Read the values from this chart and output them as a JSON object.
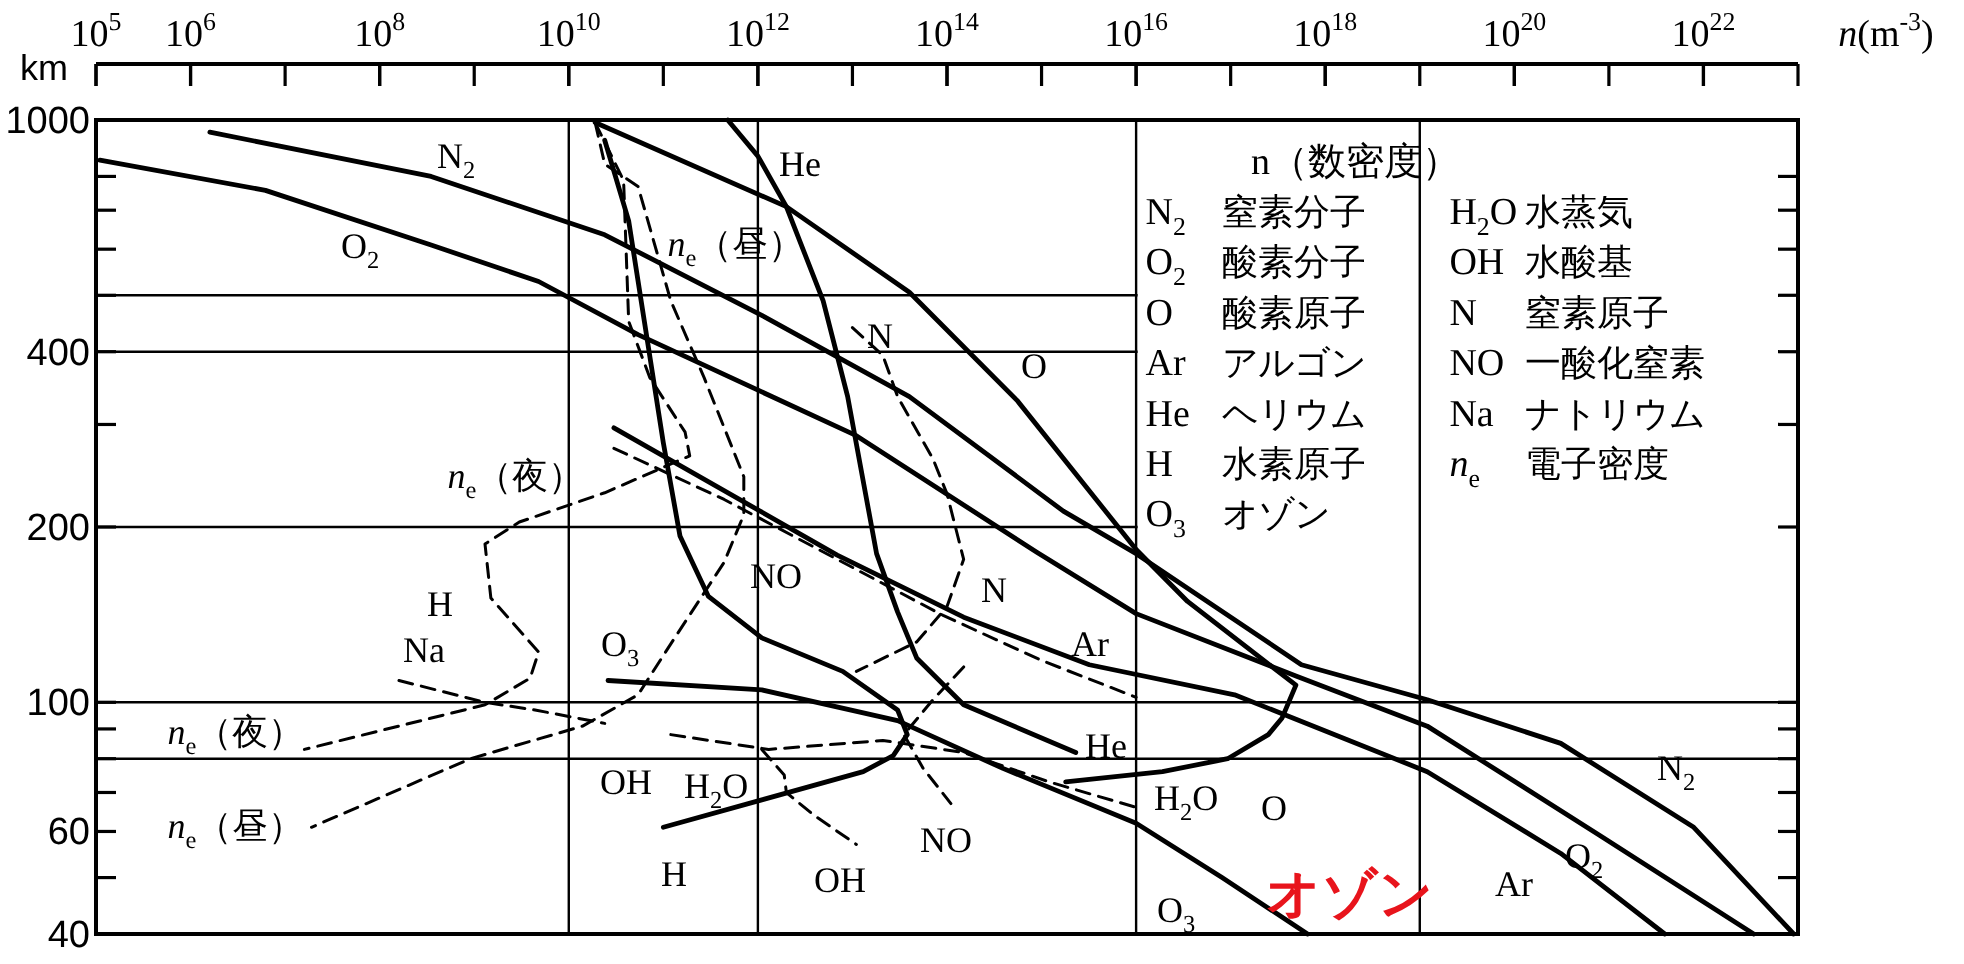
{
  "chart_data": {
    "type": "line",
    "xlabel": "*n*(m$^{-3}$)",
    "ylabel": "km",
    "log": "xy",
    "xlim": [
      100000.0,
      1e+23
    ],
    "ylim": [
      40,
      1000
    ],
    "xticks": [
      {
        "value": 100000.0,
        "label": "10$^{5}$"
      },
      {
        "value": 1000000.0,
        "label": "10$^{6}$"
      },
      {
        "value": 100000000.0,
        "label": "10$^{8}$"
      },
      {
        "value": 10000000000.0,
        "label": "10$^{10}$"
      },
      {
        "value": 1000000000000.0,
        "label": "10$^{12}$"
      },
      {
        "value": 100000000000000.0,
        "label": "10$^{14}$"
      },
      {
        "value": 1e+16,
        "label": "10$^{16}$"
      },
      {
        "value": 1e+18,
        "label": "10$^{18}$"
      },
      {
        "value": 1e+20,
        "label": "10$^{20}$"
      },
      {
        "value": 1e+22,
        "label": "10$^{22}$"
      }
    ],
    "yticks": [
      40,
      {
        "value": 50,
        "label": null
      },
      60,
      {
        "value": 70,
        "label": null
      },
      {
        "value": 80,
        "label": null
      },
      {
        "value": 90,
        "label": null
      },
      100,
      200,
      {
        "value": 300,
        "label": null
      },
      400,
      {
        "value": 500,
        "label": null
      },
      {
        "value": 600,
        "label": null
      },
      {
        "value": 700,
        "label": null
      },
      {
        "value": 800,
        "label": null
      },
      1000
    ],
    "ref_lines": [
      {
        "axis": "x",
        "value": 10000000000.0
      },
      {
        "axis": "x",
        "value": 1000000000000.0
      },
      {
        "axis": "x",
        "value": 1e+16
      },
      {
        "axis": "x",
        "value": 1e+19
      },
      {
        "axis": "y",
        "value": 80
      },
      {
        "axis": "y",
        "value": 100
      },
      {
        "axis": "y",
        "value": 200
      },
      {
        "axis": "y",
        "value": 400
      },
      {
        "axis": "y",
        "value": 500
      }
    ],
    "series": [
      {
        "color": "#000000",
        "line_style": "solid",
        "x": [
          1600000.0,
          350000000.0,
          24000000000.0,
          1100000000000.0,
          40000000000000.0,
          1700000000000000.0,
          1e+16,
          5.6e+17,
          1.2e+19,
          3.1e+20,
          7.9e+21,
          9e+22
        ],
        "values": [
          953,
          800,
          635,
          462,
          335,
          213,
          180,
          116,
          101,
          85,
          61,
          40
        ]
      },
      {
        "color": "#000000",
        "line_style": "solid",
        "x": [
          110000.0,
          6200000.0,
          350000000.0,
          4800000000.0,
          54000000000.0,
          11000000000000.0,
          890000000000000.0,
          1e+16,
          4.9e+17,
          1.2e+19,
          8.1e+20,
          3.4e+22
        ],
        "values": [
          853,
          757,
          610,
          528,
          428,
          287,
          181,
          142,
          111,
          91,
          59,
          40
        ]
      },
      {
        "color": "#000000",
        "line_style": "solid",
        "x": [
          19000000000.0,
          2000000000000.0,
          40000000000000.0,
          550000000000000.0,
          1e+16,
          3.5e+16,
          4.9e+17,
          3.5e+17,
          2.5e+17,
          9.3e+16,
          1.9e+16,
          1800000000000000.0
        ],
        "values": [
          990,
          710,
          506,
          330,
          183,
          149,
          107,
          94,
          88,
          80,
          76,
          73
        ]
      },
      {
        "color": "#000000",
        "line_style": "solid",
        "x": [
          30000000000.0,
          6900000000000.0,
          150000000000000.0,
          3200000000000000.0,
          1.1e+17,
          1.2e+19,
          3.1e+20,
          3.9e+21
        ],
        "values": [
          296,
          179,
          140,
          116,
          103,
          76,
          55,
          40
        ]
      },
      {
        "color": "#000000",
        "line_style": "solid",
        "x": [
          480000000000.0,
          1000000000000.0,
          2000000000000.0,
          4900000000000.0,
          8900000000000.0,
          18000000000000.0,
          30000000000000.0,
          48000000000000.0,
          150000000000000.0,
          2300000000000000.0
        ],
        "values": [
          1000,
          867,
          710,
          489,
          335,
          180,
          143,
          119,
          99,
          82
        ]
      },
      {
        "color": "#000000",
        "line_style": "solid",
        "x": [
          24000000000.0,
          43000000000.0,
          63000000000.0,
          100000000000.0,
          150000000000.0,
          300000000000.0,
          1100000000000.0,
          7900000000000.0,
          30000000000000.0,
          38000000000000.0,
          27000000000000.0,
          13000000000000.0,
          1100000000000.0,
          100000000000.0
        ],
        "values": [
          923,
          671,
          451,
          279,
          193,
          152,
          129,
          113,
          97,
          88,
          81,
          76,
          68,
          61
        ]
      },
      {
        "color": "#000000",
        "line_style": "solid",
        "x": [
          26000000000.0,
          1100000000000.0,
          30000000000000.0,
          390000000000000.0,
          1e+16,
          8.1e+16,
          6.5e+17
        ],
        "values": [
          109,
          105,
          93,
          77,
          62,
          50,
          40
        ]
      },
      {
        "color": "#000000",
        "line_style": "dashed",
        "x": [
          10000000000000.0,
          21000000000000.0,
          30000000000000.0,
          71000000000000.0,
          100000000000000.0,
          150000000000000.0,
          100000000000000.0,
          48000000000000.0,
          11000000000000.0
        ],
        "values": [
          440,
          394,
          335,
          262,
          228,
          176,
          146,
          127,
          113
        ]
      },
      {
        "color": "#000000",
        "line_style": "dashed",
        "x": [
          30000000000.0,
          440000000000.0,
          6900000000000.0,
          91000000000000.0,
          1000000000000000.0,
          1e+16,
          null,
          150000000000000.0,
          71000000000000.0,
          35000000000000.0,
          56000000000000.0,
          110000000000000.0
        ],
        "values": [
          273,
          223,
          176,
          141,
          118,
          102,
          null,
          115,
          101,
          88,
          77,
          67
        ]
      },
      {
        "color": "#000000",
        "line_style": "dashed",
        "x": [
          19000000000.0,
          24000000000.0,
          54000000000.0,
          120000000000.0,
          270000000000.0,
          710000000000.0,
          710000000000.0,
          440000000000.0,
          120000000000.0,
          54000000000.0,
          14000000000.0,
          910000000.0,
          19000000.0
        ],
        "values": [
          990,
          840,
          769,
          489,
          361,
          244,
          210,
          174,
          126,
          103,
          91,
          80,
          61
        ]
      },
      {
        "color": "#000000",
        "line_style": "dashed",
        "x": [
          19000000000.0,
          38000000000.0,
          43000000000.0,
          72000000000.0,
          170000000000.0,
          190000000000.0,
          24000000000.0,
          3000000000.0,
          1300000000.0,
          1500000000.0,
          4800000000.0,
          3900000000.0,
          1300000000.0,
          16000000.0
        ],
        "values": [
          990,
          787,
          451,
          361,
          291,
          265,
          229,
          204,
          187,
          151,
          122,
          110,
          99,
          83
        ]
      },
      {
        "color": "#000000",
        "line_style": "dashed",
        "x": [
          160000000.0,
          1300000000.0,
          4400000000.0,
          24000000000.0
        ],
        "values": [
          109,
          100,
          97,
          92
        ]
      },
      {
        "color": "#000000",
        "line_style": "dashed",
        "x": [
          120000000000.0,
          1300000000000.0,
          21000000000000.0,
          150000000000000.0,
          1200000000000000.0,
          1e+16
        ],
        "values": [
          88,
          83,
          86,
          82,
          73,
          66
        ]
      },
      {
        "color": "#000000",
        "line_style": "dashed",
        "x": [
          1100000000000.0,
          1900000000000.0,
          2000000000000.0,
          3900000000000.0,
          11000000000000.0
        ],
        "values": [
          83,
          75,
          70,
          64,
          57
        ]
      }
    ],
    "annotations": [
      "N$_{2}$",
      "O$_{2}$",
      "He",
      "*n*$_{e}$（昼）",
      "N",
      "O",
      "*n*$_{e}$（夜）",
      "NO",
      "N",
      "Ar",
      "H",
      "Na",
      "O$_{3}$",
      "He",
      "*n*$_{e}$（夜）",
      "OH",
      "H$_{2}$O",
      "H$_{2}$O",
      "O",
      "*n*$_{e}$（昼）",
      "NO",
      "H",
      "OH",
      "N$_{2}$",
      "O$_{2}$",
      "Ar",
      "O$_{3}$",
      "オゾン",
      "n（数密度）",
      "N$_{2}$ 窒素分子",
      "O$_{2}$ 酸素分子",
      "O 酸素原子",
      "Ar アルゴン",
      "He ヘリウム",
      "H 水素原子",
      "O$_{3}$ オゾン",
      "H$_{2}$O 水蒸気",
      "OH 水酸基",
      "N 窒素原子",
      "NO 一酸化窒素",
      "Na ナトリウム",
      "*n*$_{e}$ 電子密度"
    ]
  }
}
